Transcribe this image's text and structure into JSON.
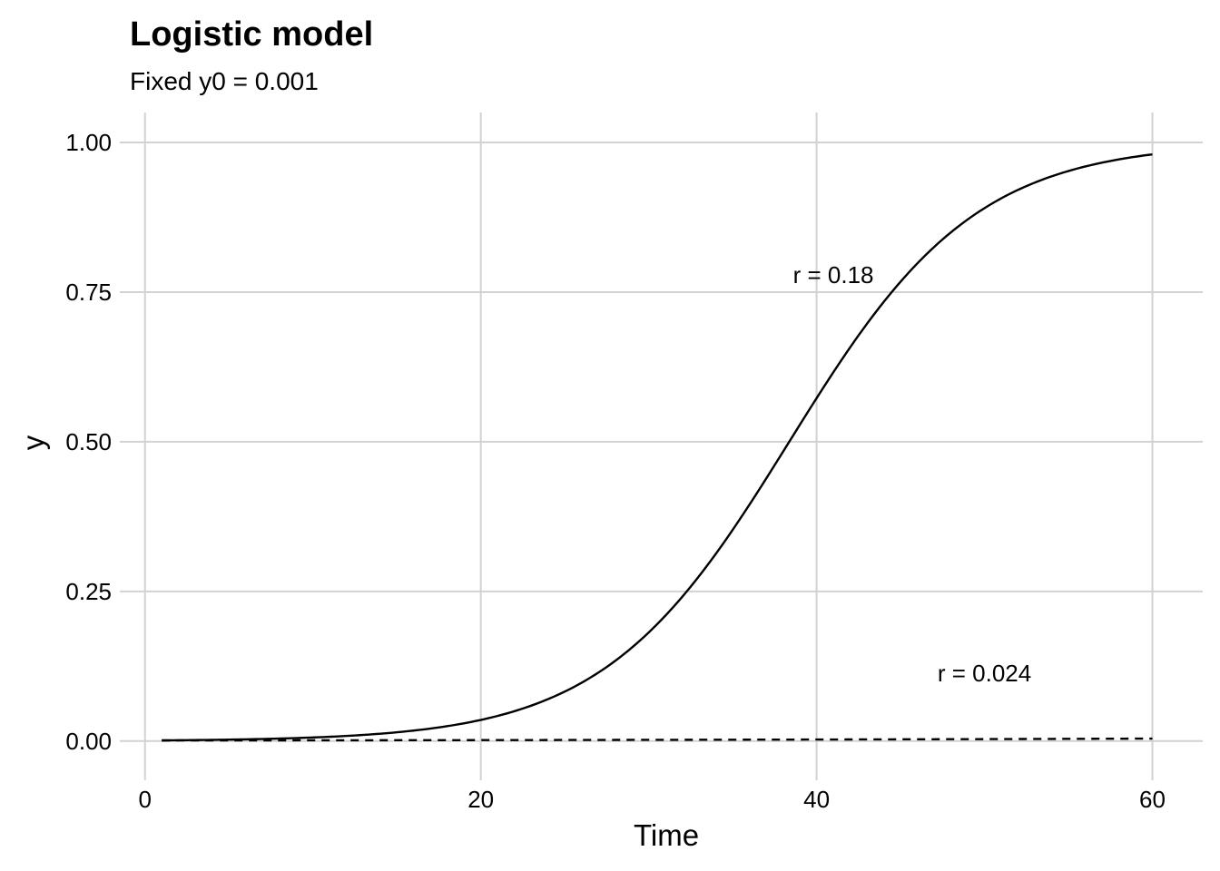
{
  "chart_data": {
    "type": "line",
    "title": "Logistic model",
    "subtitle": "Fixed y0 = 0.001",
    "xlabel": "Time",
    "ylabel": "y",
    "xlim": [
      -1.5,
      63
    ],
    "ylim": [
      -0.02,
      1.05
    ],
    "x_ticks": [
      0,
      20,
      40,
      60
    ],
    "x_tick_labels": [
      "0",
      "20",
      "40",
      "60"
    ],
    "y_ticks": [
      0,
      0.25,
      0.5,
      0.75,
      1
    ],
    "y_tick_labels": [
      "0.00",
      "0.25",
      "0.50",
      "0.75",
      "1.00"
    ],
    "grid": true,
    "legend": "none",
    "model": {
      "y0": 0.001
    },
    "series": [
      {
        "r": 0.18,
        "line_style": "solid",
        "color": "#000000",
        "x": [
          1,
          5,
          10,
          15,
          18,
          20,
          22,
          24,
          26,
          28,
          30,
          32,
          34,
          36,
          38,
          40,
          42,
          44,
          46,
          48,
          50,
          55,
          60
        ],
        "y": [
          0.0012,
          0.0024,
          0.006,
          0.0145,
          0.0247,
          0.0354,
          0.0507,
          0.0721,
          0.1022,
          0.1436,
          0.199,
          0.2703,
          0.3564,
          0.453,
          0.5524,
          0.6457,
          0.7278,
          0.796,
          0.85,
          0.8908,
          0.9211,
          0.9605,
          0.9805
        ]
      },
      {
        "r": 0.024,
        "line_style": "dashed",
        "color": "#000000",
        "x": [
          1,
          10,
          20,
          30,
          40,
          45,
          50,
          55,
          60
        ],
        "y": [
          0.001,
          0.0013,
          0.0016,
          0.0021,
          0.0026,
          0.0029,
          0.0033,
          0.0037,
          0.0042
        ]
      }
    ],
    "annotations": [
      {
        "text": "r = 0.18",
        "x": 41,
        "y": 0.765
      },
      {
        "text": "r = 0.024",
        "x": 50,
        "y": 0.1
      }
    ]
  }
}
